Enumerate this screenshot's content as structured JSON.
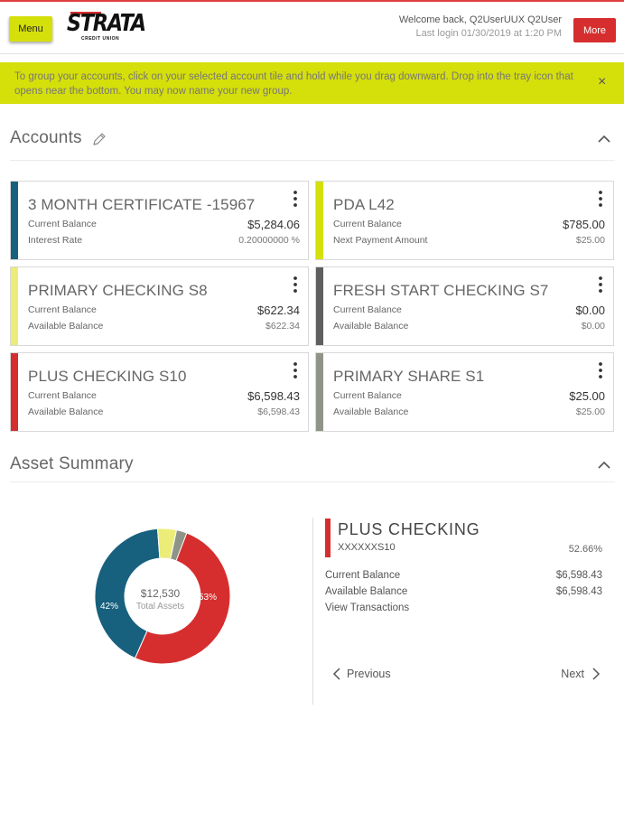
{
  "header": {
    "menu_label": "Menu",
    "logo_text": "STRATA",
    "logo_subtext": "CREDIT UNION",
    "welcome": "Welcome back, Q2UserUUX Q2User",
    "last_login": "Last login 01/30/2019 at 1:20 PM",
    "more_label": "More",
    "accent_color": "#d62e2e"
  },
  "banner": {
    "text": "To group your accounts, click on your selected account tile and hold while you drag downward. Drop into the tray icon that opens near the bottom. You may now name your new group.",
    "close_glyph": "×",
    "color": "#d5df0a"
  },
  "accounts": {
    "title": "Accounts",
    "edit_icon": "pencil-icon",
    "collapse_icon": "chevron-up-icon",
    "cards": [
      {
        "name": "3 MONTH CERTIFICATE -15967",
        "color": "#17607e",
        "label1": "Current Balance",
        "value1": "$5,284.06",
        "label2": "Interest Rate",
        "value2": "0.20000000 %"
      },
      {
        "name": "PDA L42",
        "color": "#d5df0a",
        "label1": "Current Balance",
        "value1": "$785.00",
        "label2": "Next Payment Amount",
        "value2": "$25.00"
      },
      {
        "name": "PRIMARY CHECKING S8",
        "color": "#ecec78",
        "label1": "Current Balance",
        "value1": "$622.34",
        "label2": "Available Balance",
        "value2": "$622.34"
      },
      {
        "name": "FRESH START CHECKING S7",
        "color": "#5f5f5f",
        "label1": "Current Balance",
        "value1": "$0.00",
        "label2": "Available Balance",
        "value2": "$0.00"
      },
      {
        "name": "PLUS CHECKING S10",
        "color": "#d62e2e",
        "label1": "Current Balance",
        "value1": "$6,598.43",
        "label2": "Available Balance",
        "value2": "$6,598.43"
      },
      {
        "name": "PRIMARY SHARE S1",
        "color": "#8f9488",
        "label1": "Current Balance",
        "value1": "$25.00",
        "label2": "Available Balance",
        "value2": "$25.00"
      }
    ]
  },
  "asset_summary": {
    "title": "Asset Summary",
    "collapse_icon": "chevron-up-icon",
    "total": "$12,530",
    "total_label": "Total Assets",
    "slices": [
      {
        "account": "PLUS CHECKING S10",
        "fraction": 0.5266,
        "color": "#d62e2e",
        "label": "53%"
      },
      {
        "account": "3 MONTH CERTIFICATE -15967",
        "fraction": 0.4217,
        "color": "#17607e",
        "label": "42%"
      },
      {
        "account": "PRIMARY CHECKING S8",
        "fraction": 0.0497,
        "color": "#ecec78",
        "label": ""
      },
      {
        "account": "PDA L42",
        "fraction": 0.0,
        "color": "#d5df0a",
        "label": ""
      },
      {
        "account": "PRIMARY SHARE S1",
        "fraction": 0.002,
        "color": "#8f9488",
        "label": ""
      }
    ],
    "detail": {
      "name": "PLUS CHECKING",
      "number": "XXXXXXS10",
      "percent": "52.66%",
      "current_balance_label": "Current Balance",
      "current_balance": "$6,598.43",
      "available_balance_label": "Available Balance",
      "available_balance": "$6,598.43",
      "view_transactions": "View Transactions"
    },
    "prev_label": "Previous",
    "next_label": "Next"
  }
}
